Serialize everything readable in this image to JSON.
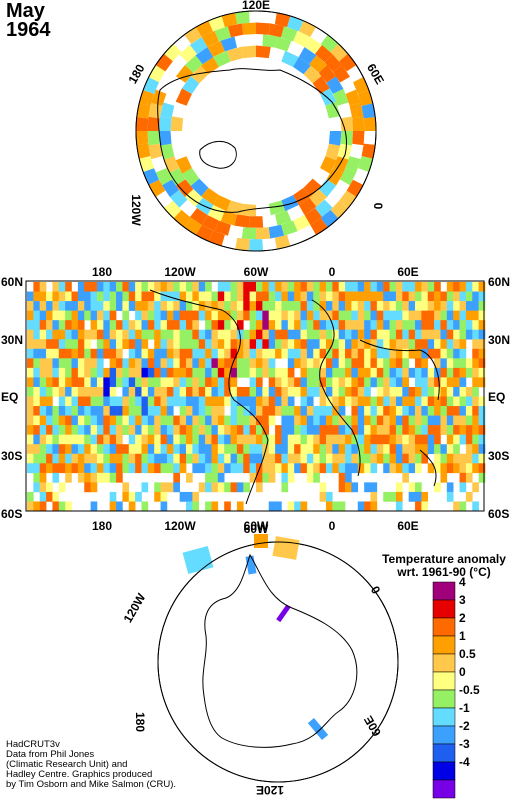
{
  "header": {
    "month": "May",
    "year": "1964"
  },
  "north_polar": {
    "labels": [
      "120E",
      "180",
      "60E",
      "0",
      "120W"
    ]
  },
  "equatorial": {
    "lon_labels": [
      "180",
      "120W",
      "60W",
      "0",
      "60E"
    ],
    "lat_labels": [
      "60N",
      "30N",
      "EQ",
      "30S",
      "60S"
    ]
  },
  "south_polar": {
    "labels": [
      "120W",
      "0",
      "60W",
      "180",
      "60E",
      "120E"
    ]
  },
  "legend": {
    "title_line1": "Temperature anomaly",
    "title_line2": "wrt. 1961-90  (°C)",
    "levels": [
      {
        "label": "4",
        "color": "#a0007a"
      },
      {
        "label": "3",
        "color": "#e60000"
      },
      {
        "label": "2",
        "color": "#ff6a00"
      },
      {
        "label": "1",
        "color": "#ffa000"
      },
      {
        "label": "0.5",
        "color": "#ffc84b"
      },
      {
        "label": "0",
        "color": "#ffff80"
      },
      {
        "label": "-0.5",
        "color": "#96f064"
      },
      {
        "label": "-1",
        "color": "#64dcff"
      },
      {
        "label": "-2",
        "color": "#3ca0ff"
      },
      {
        "label": "-3",
        "color": "#1e5ff0"
      },
      {
        "label": "-4",
        "color": "#0000e6"
      },
      {
        "label": "",
        "color": "#7800e6"
      }
    ]
  },
  "credits": "HadCRUT3v\nData from Phil Jones\n(Climatic Research Unit) and\nHadley Centre.  Graphics produced\nby Tim Osborn and Mike Salmon (CRU)."
}
